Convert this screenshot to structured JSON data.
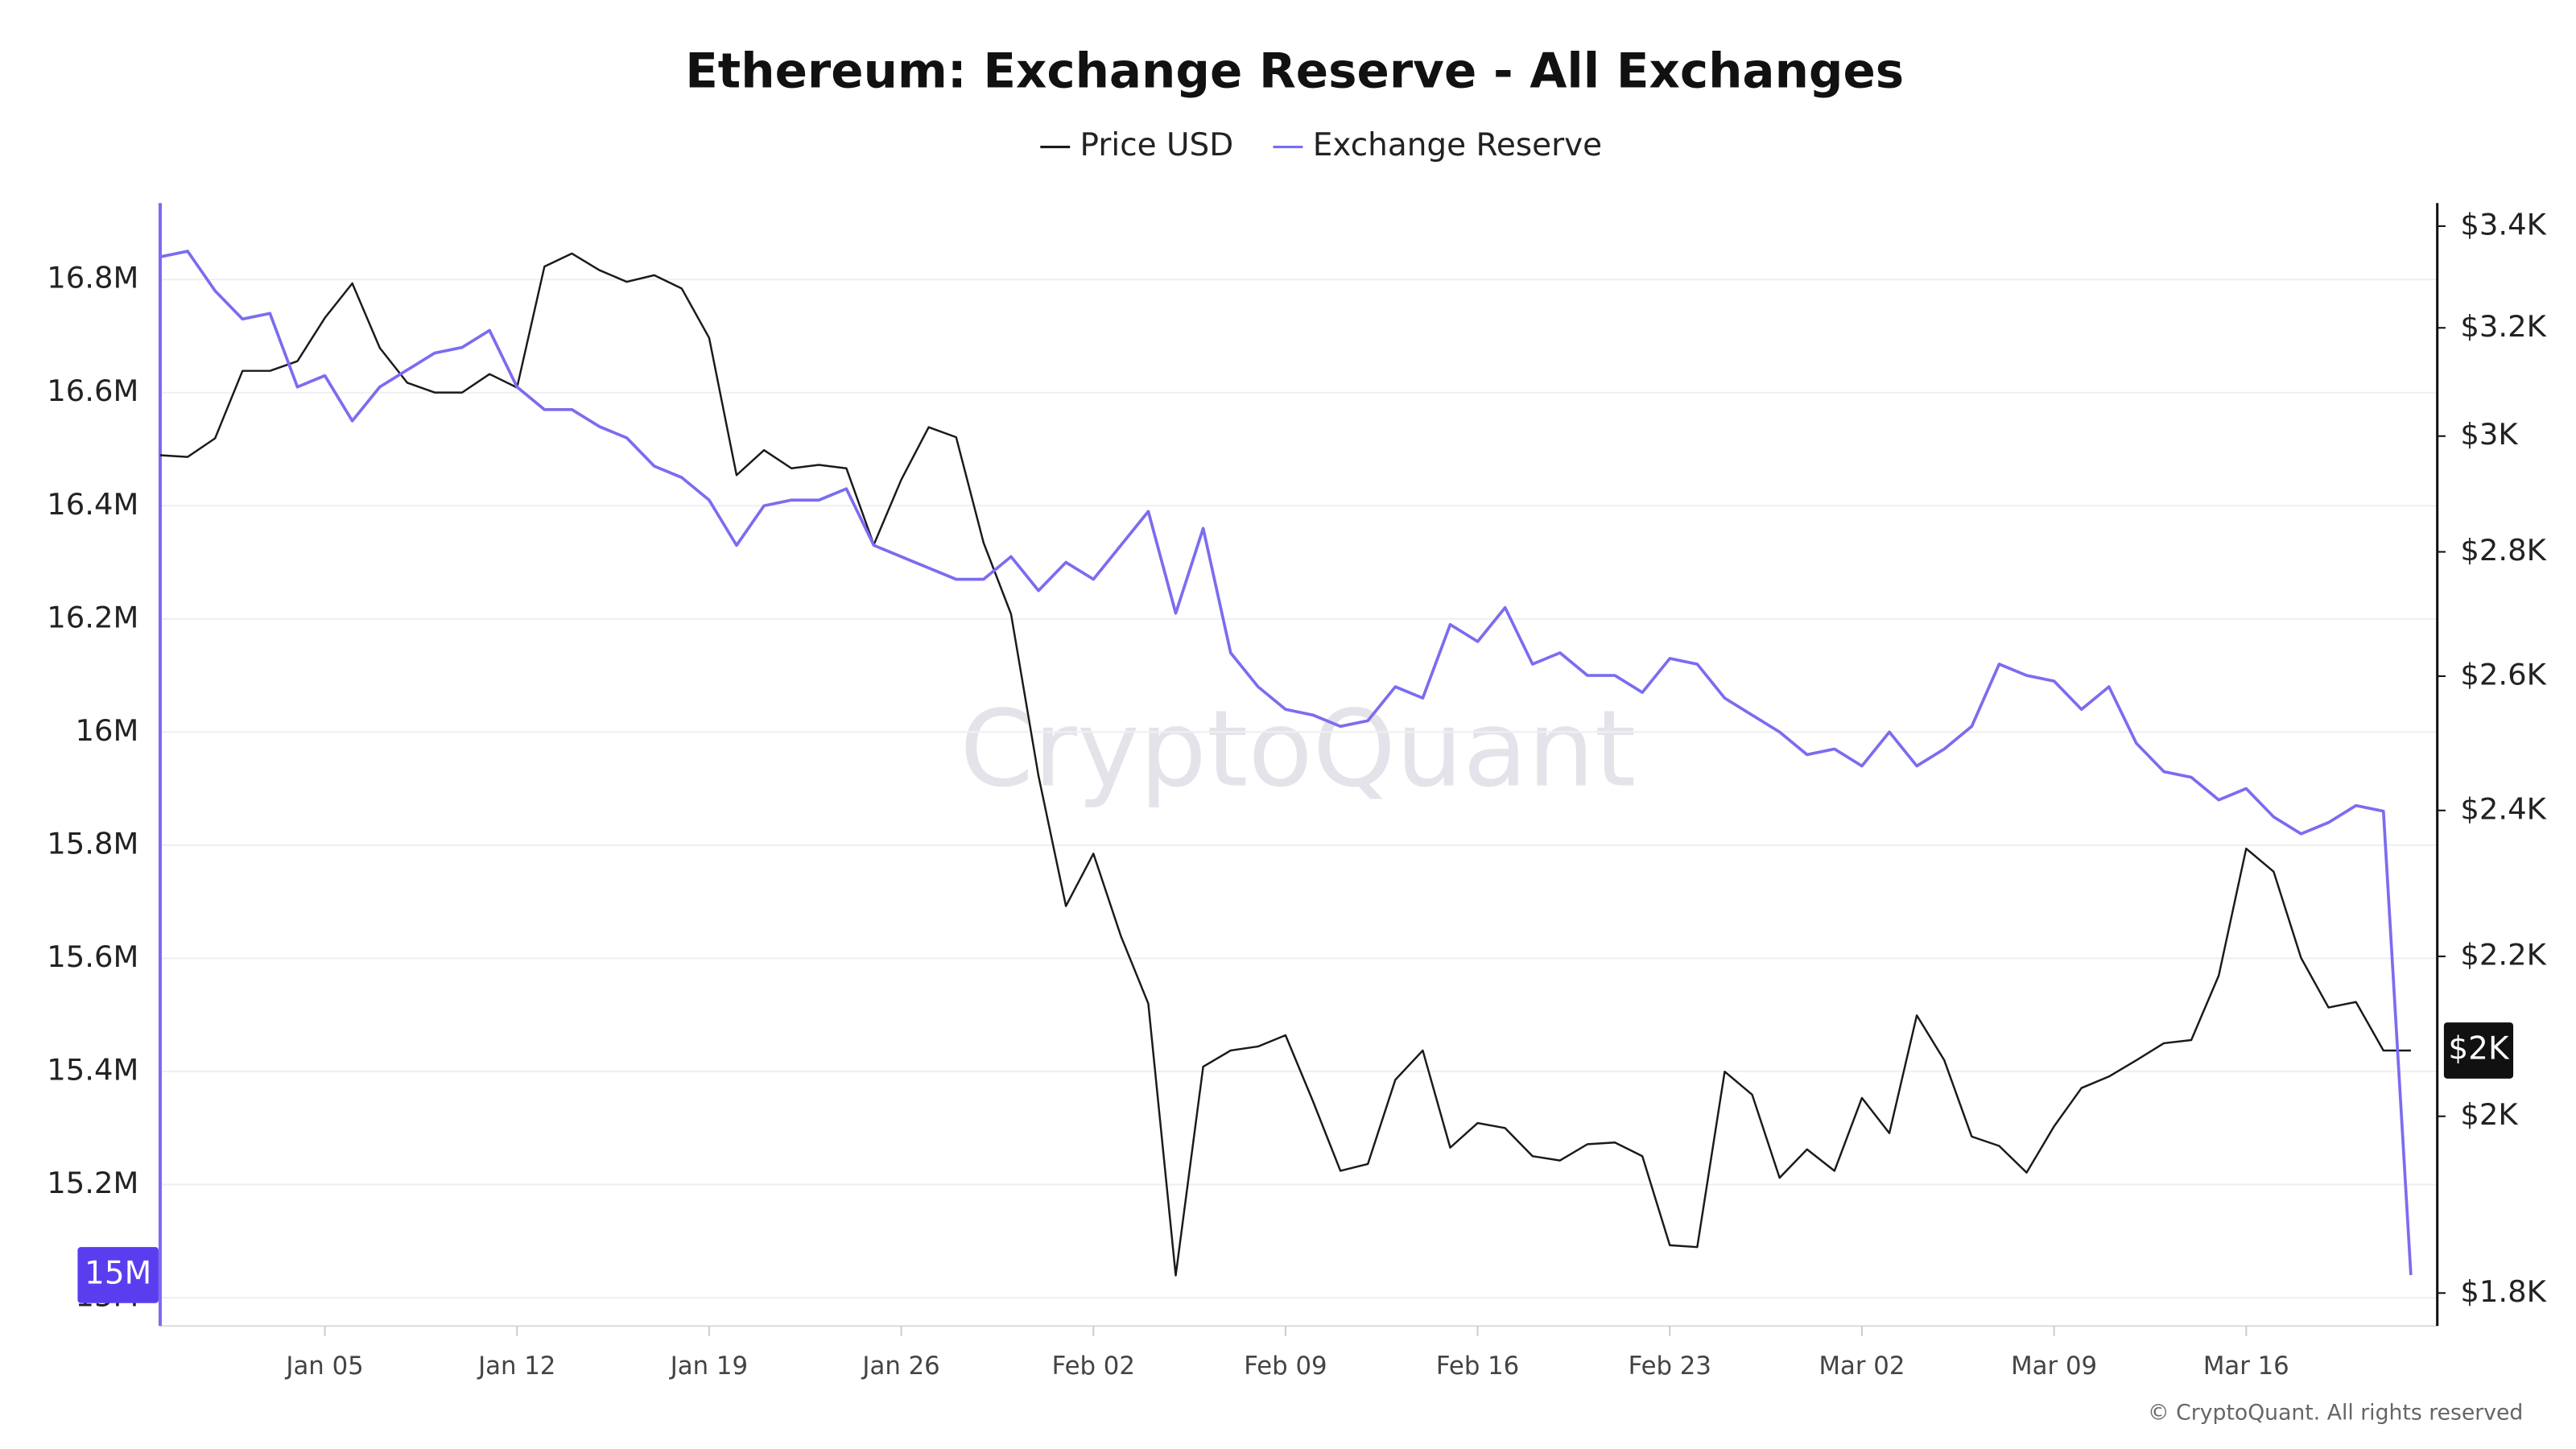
{
  "chart_data": {
    "type": "line",
    "title": "Ethereum: Exchange Reserve - All Exchanges",
    "watermark": "CryptoQuant",
    "copyright": "© CryptoQuant. All rights reserved",
    "categories": [
      null,
      null,
      null,
      null,
      null,
      null,
      "Jan 05",
      null,
      null,
      null,
      null,
      null,
      null,
      "Jan 12",
      null,
      null,
      null,
      null,
      null,
      null,
      "Jan 19",
      null,
      null,
      null,
      null,
      null,
      null,
      "Jan 26",
      null,
      null,
      null,
      null,
      null,
      null,
      "Feb 02",
      null,
      null,
      null,
      null,
      null,
      null,
      "Feb 09",
      null,
      null,
      null,
      null,
      null,
      null,
      "Feb 16",
      null,
      null,
      null,
      null,
      null,
      null,
      "Feb 23",
      null,
      null,
      null,
      null,
      null,
      null,
      "Mar 02",
      null,
      null,
      null,
      null,
      null,
      null,
      "Mar 09",
      null,
      null,
      null,
      null,
      null,
      null,
      "Mar 16",
      null,
      null,
      null,
      null,
      null,
      null
    ],
    "series": [
      {
        "name": "Price USD",
        "color": "#1a1a1a",
        "axis": "y2",
        "values": [
          2966,
          2963,
          2996,
          3119,
          3119,
          3137,
          3219,
          3286,
          3162,
          3097,
          3079,
          3079,
          3113,
          3088,
          3319,
          3345,
          3312,
          3289,
          3302,
          3276,
          3181,
          2931,
          2975,
          2943,
          2949,
          2943,
          2812,
          2923,
          3016,
          2998,
          2815,
          2698,
          2450,
          2267,
          2339,
          2227,
          2139,
          1819,
          2060,
          2080,
          2085,
          2099,
          2018,
          1936,
          1944,
          2044,
          2080,
          1963,
          1992,
          1986,
          1953,
          1948,
          1967,
          1969,
          1953,
          1852,
          1850,
          2054,
          2026,
          1928,
          1961,
          1936,
          2022,
          1980,
          2124,
          2068,
          1976,
          1965,
          1934,
          1988,
          2034,
          2048,
          2068,
          2089,
          2093,
          2175,
          2346,
          2314,
          2198,
          2134,
          2141,
          2080,
          2080
        ]
      },
      {
        "name": "Exchange Reserve",
        "color": "#7b6cf0",
        "axis": "y",
        "values": [
          16840000,
          16850000,
          16780000,
          16730000,
          16740000,
          16610000,
          16630000,
          16550000,
          16610000,
          16640000,
          16670000,
          16680000,
          16710000,
          16610000,
          16570000,
          16570000,
          16540000,
          16520000,
          16470000,
          16450000,
          16410000,
          16330000,
          16400000,
          16410000,
          16410000,
          16430000,
          16330000,
          16310000,
          16290000,
          16270000,
          16270000,
          16310000,
          16250000,
          16300000,
          16270000,
          16330000,
          16390000,
          16210000,
          16360000,
          16140000,
          16080000,
          16040000,
          16030000,
          16010000,
          16020000,
          16080000,
          16060000,
          16190000,
          16160000,
          16220000,
          16120000,
          16140000,
          16100000,
          16100000,
          16070000,
          16130000,
          16120000,
          16060000,
          16030000,
          16000000,
          15960000,
          15970000,
          15940000,
          16000000,
          15940000,
          15970000,
          16010000,
          16120000,
          16100000,
          16090000,
          16040000,
          16080000,
          15980000,
          15930000,
          15920000,
          15880000,
          15900000,
          15850000,
          15820000,
          15840000,
          15870000,
          15860000,
          15040000
        ]
      }
    ],
    "ylim": [
      14950000,
      16935000
    ],
    "yticks": [
      {
        "value": 15000000,
        "label": "15M"
      },
      {
        "value": 15200000,
        "label": "15.2M"
      },
      {
        "value": 15400000,
        "label": "15.4M"
      },
      {
        "value": 15600000,
        "label": "15.6M"
      },
      {
        "value": 15800000,
        "label": "15.8M"
      },
      {
        "value": 16000000,
        "label": "16M"
      },
      {
        "value": 16200000,
        "label": "16.2M"
      },
      {
        "value": 16400000,
        "label": "16.4M"
      },
      {
        "value": 16600000,
        "label": "16.6M"
      },
      {
        "value": 16800000,
        "label": "16.8M"
      }
    ],
    "y2lim": [
      1765,
      3447
    ],
    "y2log": true,
    "y2ticks": [
      {
        "value": 1800,
        "label": "$1.8K"
      },
      {
        "value": 2000,
        "label": "$2K"
      },
      {
        "value": 2200,
        "label": "$2.2K"
      },
      {
        "value": 2400,
        "label": "$2.4K"
      },
      {
        "value": 2600,
        "label": "$2.6K"
      },
      {
        "value": 2800,
        "label": "$2.8K"
      },
      {
        "value": 3000,
        "label": "$3K"
      },
      {
        "value": 3200,
        "label": "$3.2K"
      },
      {
        "value": 3400,
        "label": "$3.4K"
      }
    ],
    "grid": true,
    "annotations": [
      {
        "label": "$2K",
        "value": 2080,
        "axis": "y2"
      },
      {
        "label": "15M",
        "value": 15040000,
        "axis": "y"
      }
    ]
  }
}
